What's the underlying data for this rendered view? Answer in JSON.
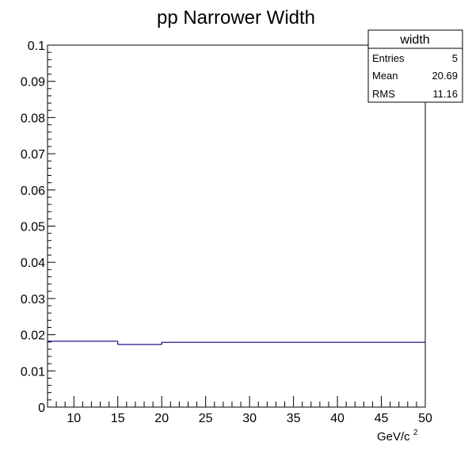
{
  "chart_data": {
    "type": "line",
    "title": "pp Narrower Width",
    "xlabel": "GeV/c",
    "xlabel_superscript": "2",
    "ylabel": "",
    "xlim": [
      7,
      50
    ],
    "ylim": [
      0,
      0.1
    ],
    "x_ticks": [
      10,
      15,
      20,
      25,
      30,
      35,
      40,
      45,
      50
    ],
    "y_ticks": [
      0,
      0.01,
      0.02,
      0.03,
      0.04,
      0.05,
      0.06,
      0.07,
      0.08,
      0.09,
      0.1
    ],
    "y_tick_labels": [
      "0",
      "0.01",
      "0.02",
      "0.03",
      "0.04",
      "0.05",
      "0.06",
      "0.07",
      "0.08",
      "0.09",
      "0.1"
    ],
    "grid": false,
    "series": [
      {
        "color": "#00007f",
        "bins": [
          {
            "x_low": 7,
            "x_high": 15,
            "y": 0.0182
          },
          {
            "x_low": 15,
            "x_high": 20,
            "y": 0.0173
          },
          {
            "x_low": 20,
            "x_high": 50,
            "y": 0.0179
          }
        ]
      }
    ],
    "stats_box": {
      "title": "width",
      "placement": "top-right",
      "rows": [
        {
          "label": "Entries",
          "value": "5"
        },
        {
          "label": "Mean",
          "value": "20.69"
        },
        {
          "label": "RMS",
          "value": "11.16"
        }
      ]
    }
  }
}
